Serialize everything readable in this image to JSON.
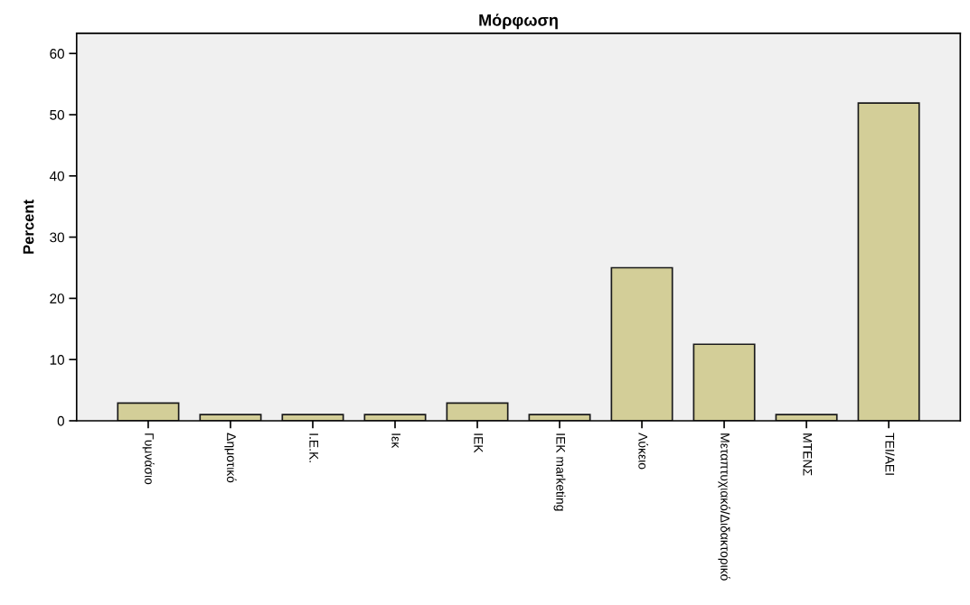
{
  "chart_data": {
    "type": "bar",
    "title": "Μόρφωση",
    "ylabel": "Percent",
    "categories": [
      "Γυμνάσιο",
      "Δημοτικό",
      "Ι.Ε.Κ.",
      "Ιεκ",
      "ΙΕΚ",
      "ΙΕΚ marketing",
      "Λύκειο",
      "Μεταπτυχιακό/Διδακτορικό",
      "ΜΤΕΝΣ",
      "ΤΕΙ/ΑΕΙ"
    ],
    "values": [
      2.9,
      1.0,
      1.0,
      1.0,
      2.9,
      1.0,
      25.0,
      12.5,
      1.0,
      51.9
    ],
    "color": "#d3ce98",
    "ylim": [
      0,
      63.3
    ],
    "yticks": [
      0,
      10,
      20,
      30,
      40,
      50,
      60
    ],
    "grid": false,
    "legend": false
  }
}
